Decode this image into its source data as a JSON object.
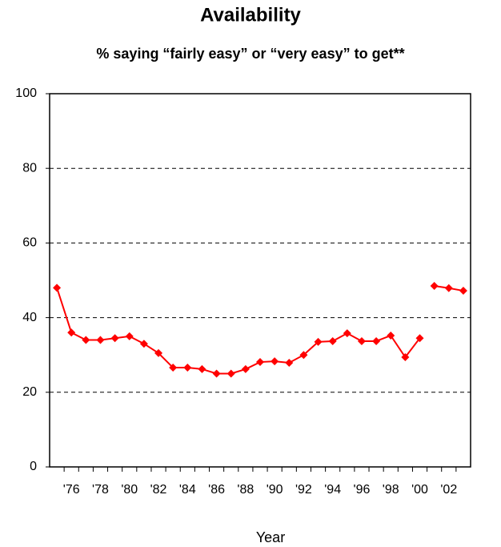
{
  "chart_data": {
    "type": "line",
    "title": "Availability",
    "subtitle": "% saying “fairly easy” or “very easy” to get**",
    "x_label": "Year",
    "categories": [
      null,
      "'76",
      null,
      "'78",
      null,
      "'80",
      null,
      "'82",
      null,
      "'84",
      null,
      "'86",
      null,
      "'88",
      null,
      "'90",
      null,
      "'92",
      null,
      "'94",
      null,
      "'96",
      null,
      "'98",
      null,
      "'00",
      null,
      "'02",
      null
    ],
    "series": [
      {
        "color": "#ff0000",
        "values": [
          48,
          36,
          34,
          34,
          34.5,
          35,
          33,
          30.5,
          26.6,
          26.6,
          26.2,
          25,
          25,
          26.2,
          28.1,
          28.3,
          27.9,
          30,
          33.5,
          33.7,
          35.8,
          33.7,
          33.7,
          35.2,
          29.4,
          34.5,
          null,
          null,
          null
        ]
      },
      {
        "color": "#ff0000",
        "values": [
          null,
          null,
          null,
          null,
          null,
          null,
          null,
          null,
          null,
          null,
          null,
          null,
          null,
          null,
          null,
          null,
          null,
          null,
          null,
          null,
          null,
          null,
          null,
          null,
          null,
          null,
          48.5,
          47.9,
          47.2
        ]
      }
    ],
    "ylim": [
      0,
      100
    ],
    "yticks": [
      0,
      20,
      40,
      60,
      80,
      100
    ],
    "grid": true
  }
}
